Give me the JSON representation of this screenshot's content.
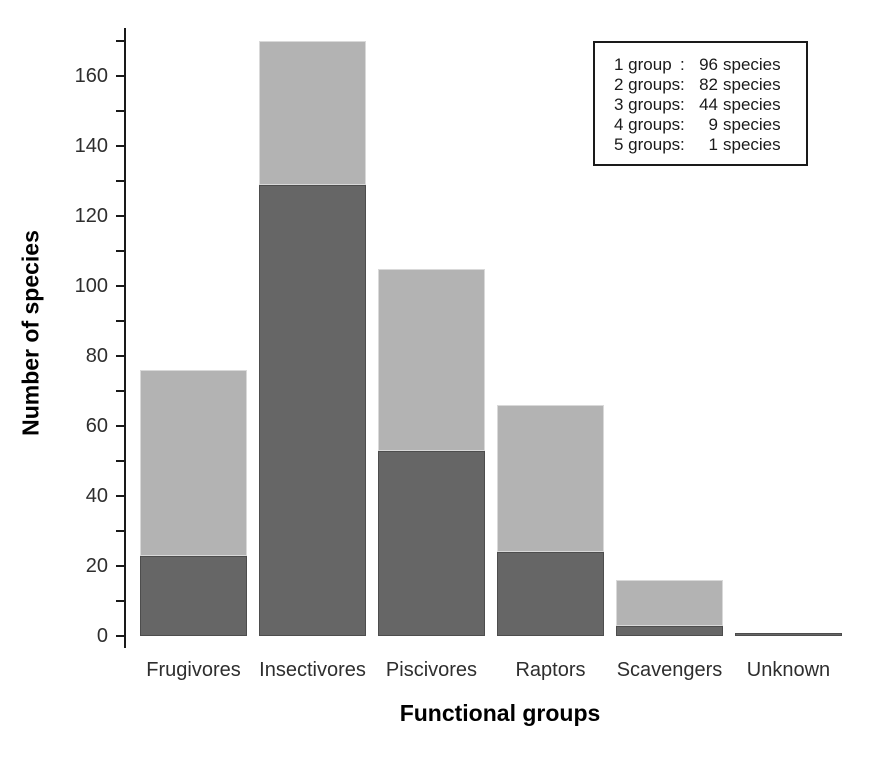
{
  "chart_data": {
    "type": "bar",
    "stacked": true,
    "title": "",
    "xlabel": "Functional groups",
    "ylabel": "Number of species",
    "categories": [
      "Frugivores",
      "Insectivores",
      "Piscivores",
      "Raptors",
      "Scavengers",
      "Unknown"
    ],
    "series": [
      {
        "name": "dark-segment",
        "color": "#666666",
        "border_color": "#4d4d4d",
        "values": [
          23,
          129,
          53,
          24,
          3,
          1
        ]
      },
      {
        "name": "light-segment",
        "color": "#b3b3b3",
        "border_color": "#d9d9d9",
        "values": [
          53,
          41,
          52,
          42,
          13,
          0
        ]
      }
    ],
    "bar_totals": [
      76,
      170,
      105,
      66,
      16,
      1
    ],
    "ylim": [
      0,
      170
    ],
    "y_major_tick_step": 20,
    "y_minor_tick_step": 10,
    "y_tick_labels": [
      "0",
      "20",
      "40",
      "60",
      "80",
      "100",
      "120",
      "140",
      "160"
    ],
    "grid": false,
    "legend_position": "top-right"
  },
  "legend": {
    "rows": [
      {
        "label": "1 group",
        "colon": ":",
        "count": "96",
        "unit": "species"
      },
      {
        "label": "2 groups",
        "colon": ":",
        "count": "82",
        "unit": "species"
      },
      {
        "label": "3 groups",
        "colon": ":",
        "count": "44",
        "unit": "species"
      },
      {
        "label": "4 groups",
        "colon": ":",
        "count": "9",
        "unit": "species"
      },
      {
        "label": "5 groups",
        "colon": ":",
        "count": "1",
        "unit": "species"
      }
    ]
  },
  "colors": {
    "axis": "#1a1a1a",
    "tick_label_text": "#2e2e2e",
    "title_text": "#000000",
    "background": "#ffffff"
  }
}
